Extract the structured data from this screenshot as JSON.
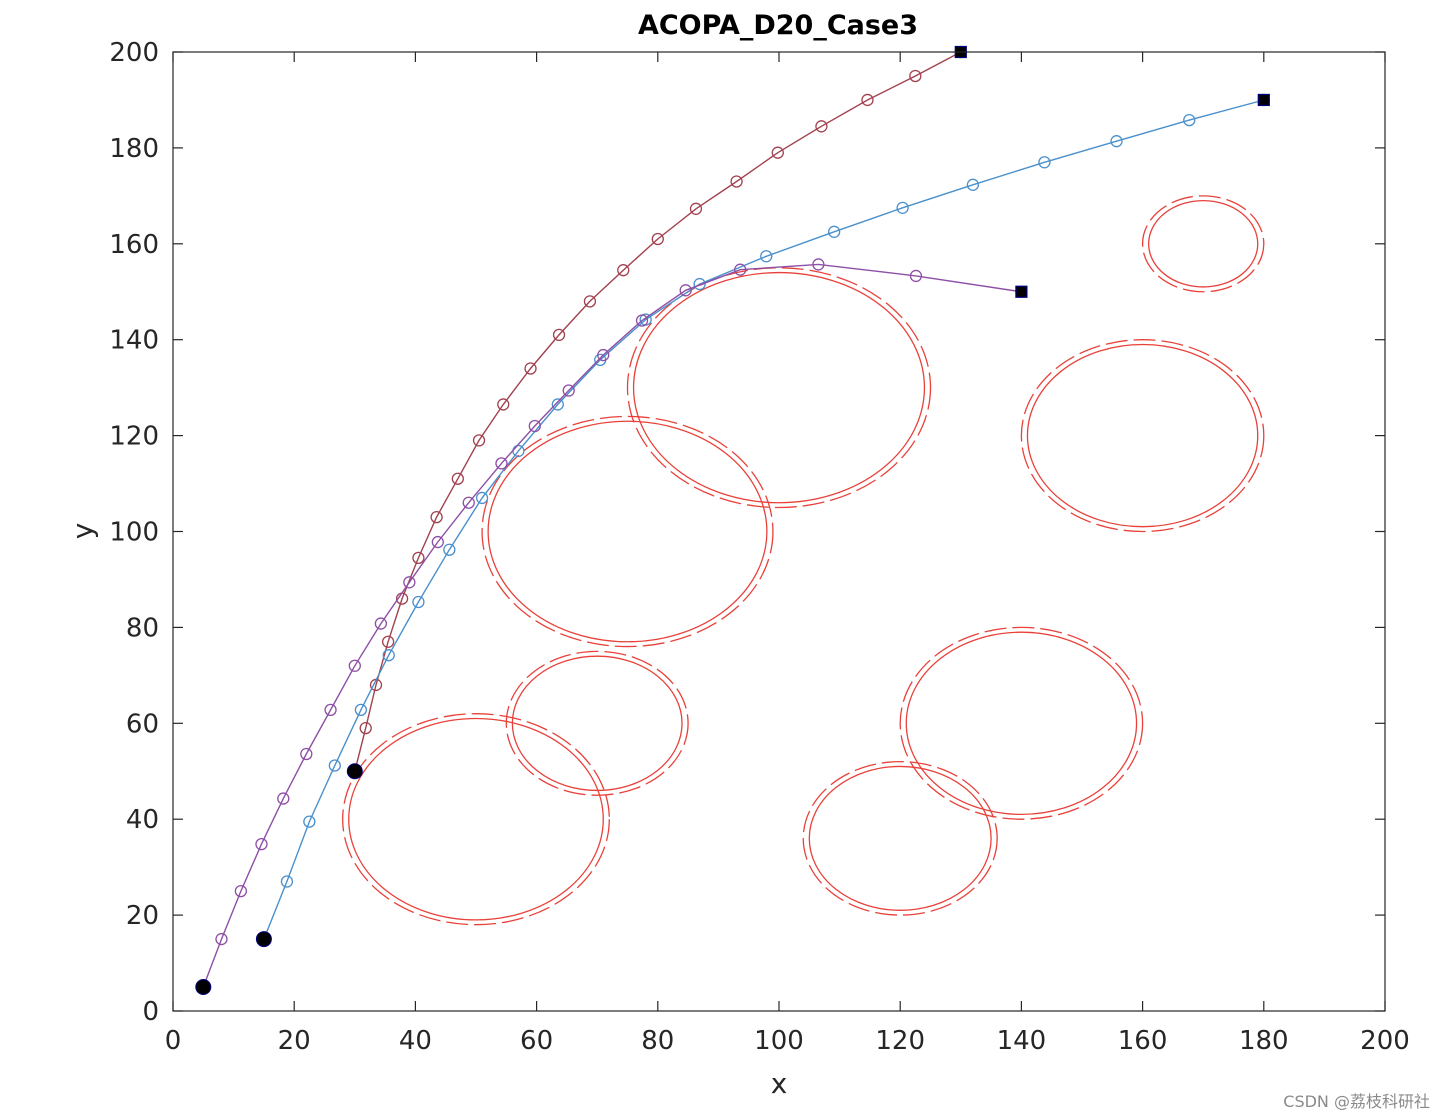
{
  "chart_data": {
    "type": "line",
    "title": "ACOPA_D20_Case3",
    "xlabel": "x",
    "ylabel": "y",
    "xlim": [
      0,
      200
    ],
    "ylim": [
      0,
      200
    ],
    "xticks": [
      0,
      20,
      40,
      60,
      80,
      100,
      120,
      140,
      160,
      180,
      200
    ],
    "yticks": [
      0,
      20,
      40,
      60,
      80,
      100,
      120,
      140,
      160,
      180,
      200
    ],
    "grid": false,
    "legend": "none",
    "series": [
      {
        "color": "#a2414f",
        "marker": "open-circle",
        "start": [
          30,
          50
        ],
        "goal": [
          130,
          200
        ],
        "points": [
          [
            30,
            50
          ],
          [
            31.8,
            59
          ],
          [
            33.5,
            68
          ],
          [
            35.5,
            77
          ],
          [
            37.8,
            86
          ],
          [
            40.5,
            94.5
          ],
          [
            43.5,
            103
          ],
          [
            47,
            111
          ],
          [
            50.5,
            119
          ],
          [
            54.5,
            126.5
          ],
          [
            59,
            134
          ],
          [
            63.7,
            141
          ],
          [
            68.8,
            148
          ],
          [
            74.3,
            154.5
          ],
          [
            80,
            161
          ],
          [
            86.3,
            167.3
          ],
          [
            93,
            173
          ],
          [
            99.8,
            179
          ],
          [
            107,
            184.5
          ],
          [
            114.6,
            190
          ],
          [
            122.5,
            195
          ],
          [
            130,
            200
          ]
        ]
      },
      {
        "color": "#4a90cc",
        "marker": "open-circle",
        "start": [
          15,
          15
        ],
        "goal": [
          180,
          190
        ],
        "points": [
          [
            15,
            15
          ],
          [
            18.8,
            27
          ],
          [
            22.5,
            39.5
          ],
          [
            26.7,
            51.2
          ],
          [
            31,
            62.8
          ],
          [
            35.6,
            74.2
          ],
          [
            40.5,
            85.3
          ],
          [
            45.6,
            96.2
          ],
          [
            51,
            107
          ],
          [
            57,
            116.8
          ],
          [
            63.5,
            126.5
          ],
          [
            70.5,
            135.8
          ],
          [
            78,
            144.2
          ],
          [
            86.9,
            151.6
          ],
          [
            97.9,
            157.4
          ],
          [
            109.1,
            162.5
          ],
          [
            120.4,
            167.5
          ],
          [
            132,
            172.3
          ],
          [
            143.8,
            177
          ],
          [
            155.7,
            181.4
          ],
          [
            167.7,
            185.8
          ],
          [
            180,
            190
          ]
        ]
      },
      {
        "color": "#8e4fa6",
        "marker": "open-circle",
        "start": [
          5,
          5
        ],
        "goal": [
          140,
          150
        ],
        "points": [
          [
            5,
            5
          ],
          [
            8,
            15
          ],
          [
            11.2,
            25
          ],
          [
            14.6,
            34.8
          ],
          [
            18.2,
            44.3
          ],
          [
            22,
            53.6
          ],
          [
            26,
            62.8
          ],
          [
            30,
            72
          ],
          [
            34.3,
            80.8
          ],
          [
            39,
            89.4
          ],
          [
            43.7,
            97.8
          ],
          [
            48.8,
            106
          ],
          [
            54.2,
            114.2
          ],
          [
            59.7,
            122
          ],
          [
            65.3,
            129.4
          ],
          [
            71,
            136.8
          ],
          [
            77.4,
            144
          ],
          [
            84.6,
            150.3
          ],
          [
            93.6,
            154.6
          ],
          [
            106.5,
            155.7
          ],
          [
            122.6,
            153.3
          ],
          [
            140,
            150
          ]
        ]
      }
    ],
    "obstacles": [
      {
        "cx": 50,
        "cy": 40,
        "rx": 21,
        "ry": 21,
        "color": "#e8413a"
      },
      {
        "cx": 70,
        "cy": 60,
        "rx": 14,
        "ry": 14,
        "color": "#e8413a"
      },
      {
        "cx": 75,
        "cy": 100,
        "rx": 23,
        "ry": 23,
        "color": "#e8413a"
      },
      {
        "cx": 100,
        "cy": 130,
        "rx": 24,
        "ry": 24,
        "color": "#e8413a"
      },
      {
        "cx": 120,
        "cy": 36,
        "rx": 15,
        "ry": 15,
        "color": "#e8413a"
      },
      {
        "cx": 140,
        "cy": 60,
        "rx": 19,
        "ry": 19,
        "color": "#e8413a"
      },
      {
        "cx": 160,
        "cy": 120,
        "rx": 19,
        "ry": 19,
        "color": "#e8413a"
      },
      {
        "cx": 170,
        "cy": 160,
        "rx": 9,
        "ry": 9,
        "color": "#e8413a"
      }
    ]
  },
  "watermark": "CSDN @荔枝科研社"
}
